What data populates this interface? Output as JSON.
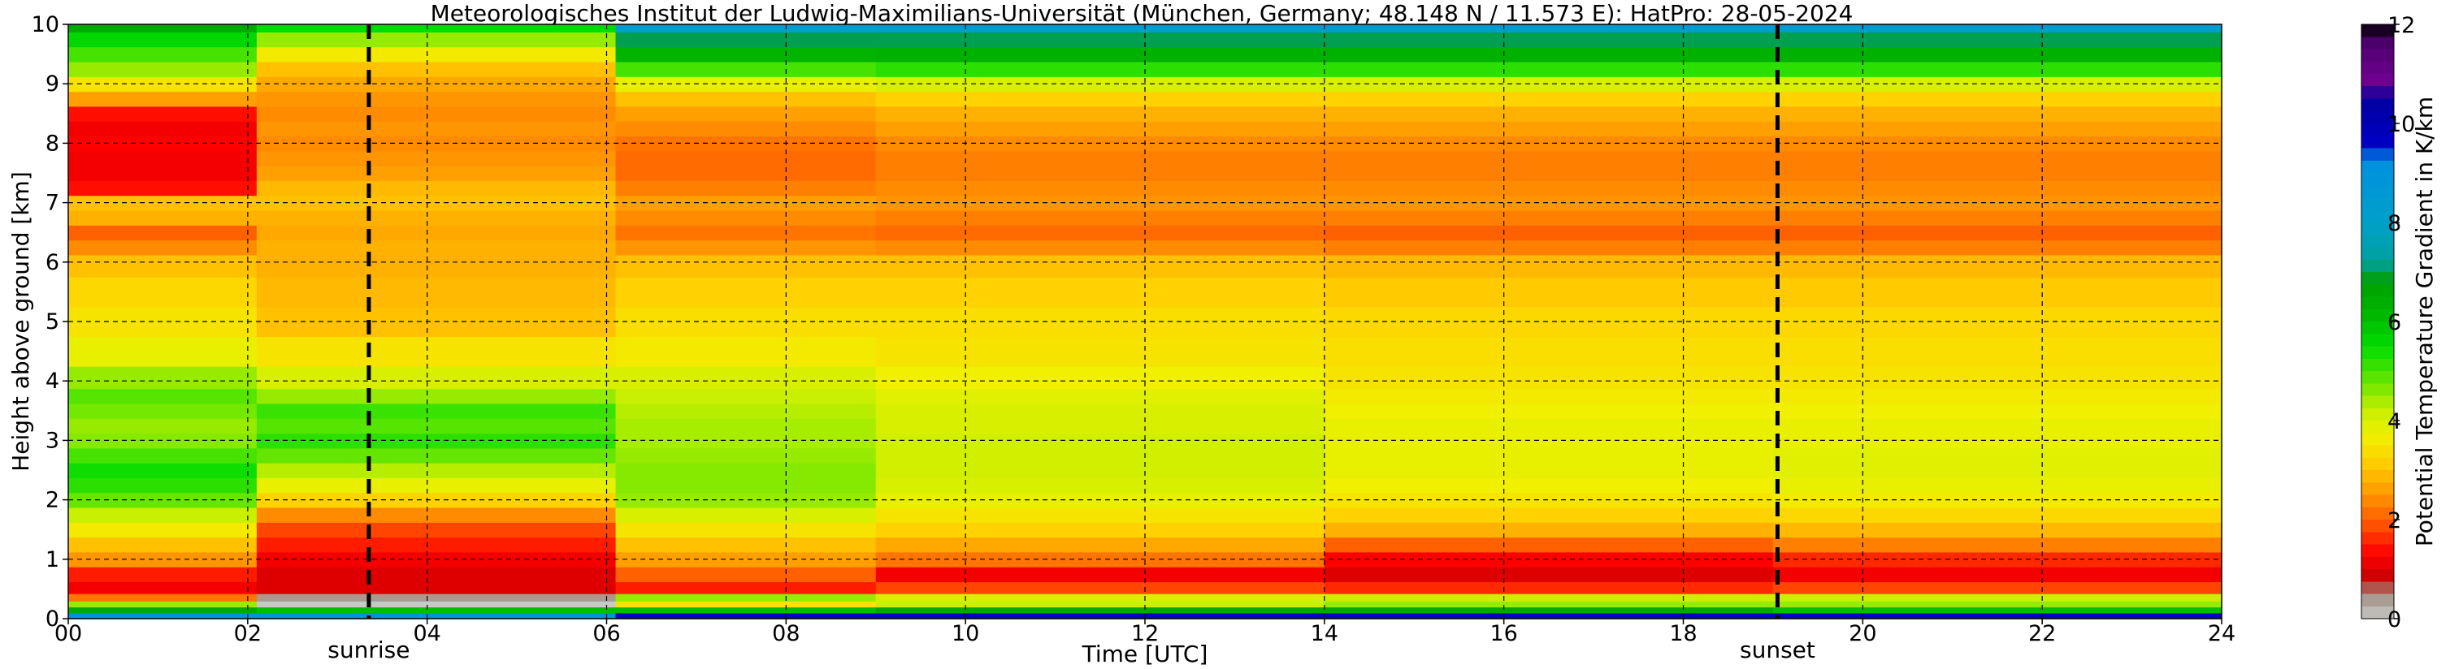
{
  "chart_data": {
    "type": "heatmap",
    "title": "Meteorologisches Institut der Ludwig-Maximilians-Universität (München, Germany; 48.148 N / 11.573 E):    HatPro: 28-05-2024",
    "xlabel": "Time [UTC]",
    "ylabel": "Height above ground [km]",
    "colorbar_label": "Potential Temperature Gradient in K/km",
    "xlim": [
      0,
      24
    ],
    "ylim": [
      0,
      10
    ],
    "clim": [
      0,
      12
    ],
    "x_ticks": [
      0,
      2,
      4,
      6,
      8,
      10,
      12,
      14,
      16,
      18,
      20,
      22,
      24
    ],
    "x_tick_labels": [
      "00",
      "02",
      "04",
      "06",
      "08",
      "10",
      "12",
      "14",
      "16",
      "18",
      "20",
      "22",
      "24"
    ],
    "y_ticks": [
      0,
      1,
      2,
      3,
      4,
      5,
      6,
      7,
      8,
      9,
      10
    ],
    "y_tick_labels": [
      "0",
      "1",
      "2",
      "3",
      "4",
      "5",
      "6",
      "7",
      "8",
      "9",
      "10"
    ],
    "colorbar_ticks": [
      0,
      2,
      4,
      6,
      8,
      10,
      12
    ],
    "colorbar_tick_labels": [
      "0",
      "2",
      "4",
      "6",
      "8",
      "10",
      "12"
    ],
    "grid": true,
    "colorscale": [
      [
        0.0,
        "#c8c8c8"
      ],
      [
        0.5,
        "#a09080"
      ],
      [
        0.8,
        "#c80000"
      ],
      [
        1.3,
        "#ff0000"
      ],
      [
        2.0,
        "#ff6000"
      ],
      [
        2.6,
        "#ffa000"
      ],
      [
        3.2,
        "#ffd200"
      ],
      [
        3.7,
        "#f0f000"
      ],
      [
        4.2,
        "#c8f000"
      ],
      [
        4.8,
        "#64e600"
      ],
      [
        5.5,
        "#00dc00"
      ],
      [
        6.2,
        "#00b400"
      ],
      [
        6.8,
        "#00a000"
      ],
      [
        7.2,
        "#00a0a0"
      ],
      [
        8.0,
        "#00a0c8"
      ],
      [
        9.3,
        "#0090e0"
      ],
      [
        9.5,
        "#0000c8"
      ],
      [
        10.5,
        "#0000a0"
      ],
      [
        10.8,
        "#700090"
      ],
      [
        11.6,
        "#500070"
      ],
      [
        12.0,
        "#000000"
      ]
    ],
    "heights_km": [
      0.05,
      0.15,
      0.25,
      0.35,
      0.5,
      0.75,
      1.0,
      1.25,
      1.5,
      1.75,
      2.0,
      2.25,
      2.5,
      2.75,
      3.0,
      3.25,
      3.5,
      3.75,
      4.0,
      4.5,
      5.0,
      5.5,
      6.0,
      6.25,
      6.5,
      6.75,
      7.0,
      7.25,
      7.5,
      7.75,
      8.0,
      8.25,
      8.5,
      8.75,
      9.0,
      9.25,
      9.5,
      9.75,
      10.0
    ],
    "periods": [
      {
        "start": 0.0,
        "end": 2.1,
        "profile": [
          9.0,
          6.5,
          4.5,
          2.2,
          1.2,
          1.5,
          2.5,
          3.0,
          3.6,
          4.2,
          4.8,
          5.2,
          5.4,
          5.0,
          4.6,
          4.5,
          4.7,
          4.9,
          4.5,
          3.8,
          3.5,
          3.3,
          3.0,
          2.4,
          2.0,
          2.8,
          3.0,
          1.4,
          1.2,
          1.2,
          1.3,
          1.2,
          1.4,
          2.6,
          3.5,
          4.5,
          5.0,
          5.6,
          6.5
        ]
      },
      {
        "start": 2.1,
        "end": 6.1,
        "profile": [
          9.0,
          6.0,
          0.0,
          0.4,
          1.0,
          1.0,
          1.2,
          1.5,
          1.8,
          2.4,
          3.2,
          3.8,
          4.3,
          4.8,
          5.2,
          4.9,
          5.1,
          4.5,
          4.0,
          3.5,
          3.0,
          2.9,
          2.8,
          2.8,
          2.7,
          2.8,
          3.0,
          2.9,
          2.6,
          2.5,
          2.4,
          2.5,
          2.4,
          2.5,
          2.7,
          3.0,
          3.6,
          4.5,
          5.5
        ]
      },
      {
        "start": 6.1,
        "end": 9.0,
        "profile": [
          9.5,
          6.0,
          3.5,
          4.5,
          1.5,
          2.0,
          2.6,
          3.0,
          3.5,
          4.0,
          4.5,
          4.6,
          4.6,
          4.5,
          4.4,
          4.4,
          4.3,
          4.2,
          4.0,
          3.6,
          3.4,
          3.2,
          3.0,
          2.5,
          2.2,
          2.4,
          2.6,
          2.3,
          2.1,
          2.1,
          2.2,
          2.4,
          2.6,
          3.0,
          3.8,
          5.0,
          6.2,
          7.0,
          8.2
        ]
      },
      {
        "start": 9.0,
        "end": 14.0,
        "profile": [
          9.5,
          6.5,
          4.2,
          4.0,
          1.8,
          1.2,
          2.2,
          2.7,
          3.2,
          3.5,
          3.8,
          4.0,
          4.1,
          4.1,
          4.1,
          4.0,
          4.0,
          3.9,
          3.7,
          3.5,
          3.4,
          3.2,
          3.0,
          2.4,
          2.1,
          2.3,
          2.5,
          2.4,
          2.3,
          2.3,
          2.4,
          2.6,
          2.8,
          3.2,
          4.0,
          5.2,
          6.3,
          7.0,
          8.3
        ]
      },
      {
        "start": 14.0,
        "end": 19.0,
        "profile": [
          9.5,
          6.5,
          4.5,
          4.2,
          1.6,
          1.0,
          1.3,
          2.0,
          2.8,
          3.2,
          3.5,
          3.7,
          3.8,
          3.8,
          3.8,
          3.8,
          3.7,
          3.6,
          3.5,
          3.4,
          3.3,
          3.1,
          2.9,
          2.3,
          2.0,
          2.3,
          2.5,
          2.4,
          2.3,
          2.3,
          2.4,
          2.6,
          2.8,
          3.2,
          4.0,
          5.2,
          6.3,
          7.0,
          8.3
        ]
      },
      {
        "start": 19.0,
        "end": 24.0,
        "profile": [
          9.5,
          6.0,
          4.5,
          4.2,
          1.8,
          1.2,
          1.6,
          2.3,
          2.9,
          3.3,
          3.6,
          3.8,
          3.9,
          3.9,
          3.8,
          3.8,
          3.7,
          3.6,
          3.5,
          3.4,
          3.3,
          3.1,
          2.9,
          2.3,
          2.0,
          2.3,
          2.5,
          2.4,
          2.3,
          2.3,
          2.4,
          2.6,
          2.8,
          3.2,
          4.0,
          5.2,
          6.3,
          7.0,
          8.3
        ]
      }
    ],
    "vertical_lines": [
      {
        "x": 3.35,
        "label": "sunrise",
        "style": "dashed"
      },
      {
        "x": 19.05,
        "label": "sunset",
        "style": "dashed"
      }
    ]
  }
}
